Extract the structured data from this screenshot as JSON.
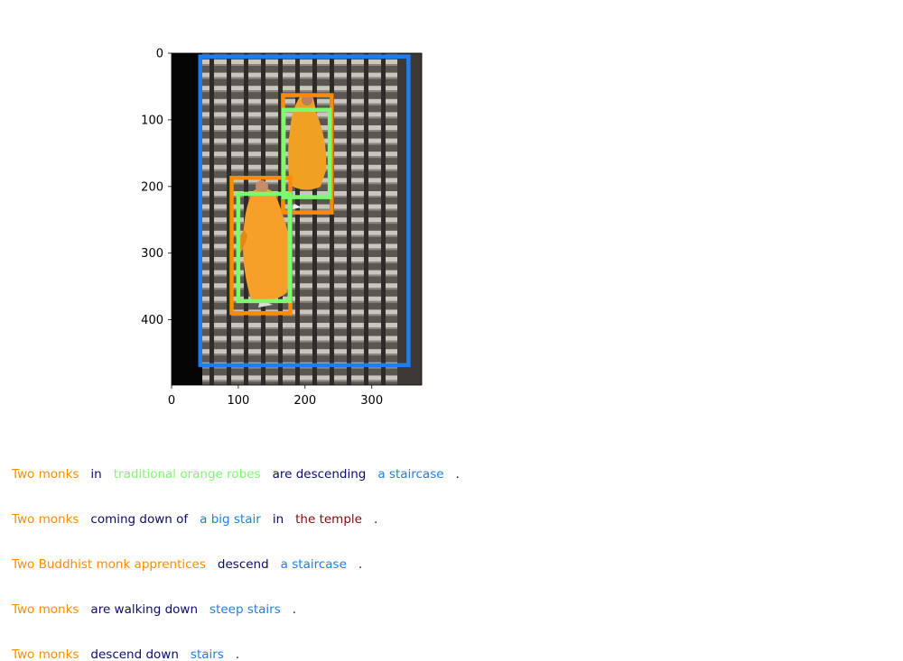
{
  "figure": {
    "x_ticks": [
      "0",
      "100",
      "200",
      "300"
    ],
    "y_ticks": [
      "0",
      "100",
      "200",
      "300",
      "400"
    ],
    "image_description": "two monks in orange robes descending a stone staircase",
    "boxes": [
      {
        "name": "box-people-1",
        "color": "#ff8c00",
        "x1": 90,
        "y1": 187,
        "x2": 178,
        "y2": 390
      },
      {
        "name": "box-people-2",
        "color": "#ff8c00",
        "x1": 167,
        "y1": 63,
        "x2": 240,
        "y2": 239
      },
      {
        "name": "box-clothing-1",
        "color": "#7cfc6c",
        "x1": 100,
        "y1": 211,
        "x2": 177,
        "y2": 372
      },
      {
        "name": "box-clothing-2",
        "color": "#7cfc6c",
        "x1": 168,
        "y1": 85,
        "x2": 237,
        "y2": 216
      },
      {
        "name": "box-scene",
        "color": "#1e7ef0",
        "x1": 43,
        "y1": 5,
        "x2": 355,
        "y2": 468
      }
    ]
  },
  "captions": [
    [
      {
        "text": "Two monks",
        "color": "#ff8c00"
      },
      {
        "text": "in",
        "color": "#0b0b6e"
      },
      {
        "text": "traditional orange robes",
        "color": "#7cfc6c"
      },
      {
        "text": "are descending",
        "color": "#0b0b6e"
      },
      {
        "text": "a staircase",
        "color": "#1e7ef0"
      },
      {
        "text": ".",
        "color": "#0b0b6e"
      }
    ],
    [
      {
        "text": "Two monks",
        "color": "#ff8c00"
      },
      {
        "text": "coming down of",
        "color": "#0b0b6e"
      },
      {
        "text": "a big stair",
        "color": "#1e7ef0"
      },
      {
        "text": "in",
        "color": "#0b0b6e"
      },
      {
        "text": "the temple",
        "color": "#7a0c0c"
      },
      {
        "text": ".",
        "color": "#0b0b6e"
      }
    ],
    [
      {
        "text": "Two Buddhist monk apprentices",
        "color": "#ff8c00"
      },
      {
        "text": "descend",
        "color": "#0b0b6e"
      },
      {
        "text": "a staircase",
        "color": "#1e7ef0"
      },
      {
        "text": ".",
        "color": "#0b0b6e"
      }
    ],
    [
      {
        "text": "Two monks",
        "color": "#ff8c00"
      },
      {
        "text": "are walking down",
        "color": "#0b0b6e"
      },
      {
        "text": "steep stairs",
        "color": "#1e7ef0"
      },
      {
        "text": ".",
        "color": "#0b0b6e"
      }
    ],
    [
      {
        "text": "Two monks",
        "color": "#ff8c00"
      },
      {
        "text": "descend down",
        "color": "#0b0b6e"
      },
      {
        "text": "stairs",
        "color": "#1e7ef0"
      },
      {
        "text": ".",
        "color": "#0b0b6e"
      }
    ]
  ]
}
